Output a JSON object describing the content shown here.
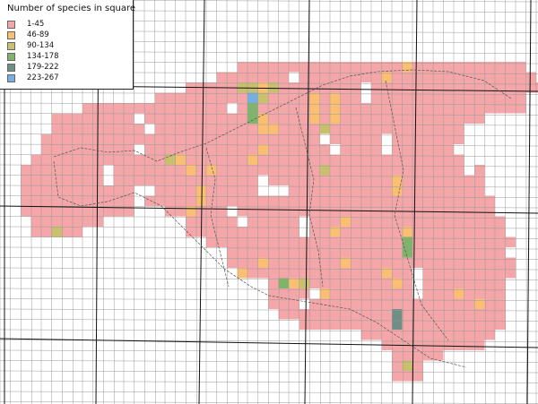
{
  "legend": {
    "title": "Number of species in square",
    "classes": [
      {
        "label": "1-45",
        "color": "#f4a6a8"
      },
      {
        "label": "46-89",
        "color": "#fbbf73"
      },
      {
        "label": "90-134",
        "color": "#c9c06e"
      },
      {
        "label": "134-178",
        "color": "#7fb46a"
      },
      {
        "label": "179-222",
        "color": "#6f8f86"
      },
      {
        "label": "223-267",
        "color": "#74aee3"
      }
    ]
  },
  "colors": {
    "grid_line": "#999999",
    "grid_line_major": "#111111",
    "border_line": "#555555"
  }
}
